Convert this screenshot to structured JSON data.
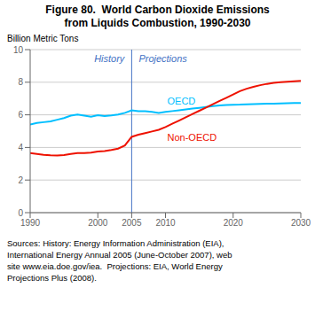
{
  "chart_data": {
    "type": "line",
    "title": "Figure 80.  World Carbon Dioxide Emissions",
    "subtitle": "from Liquids Combustion, 1990-2030",
    "y_label": "Billion Metric Tons",
    "x": [
      1990,
      1991,
      1992,
      1993,
      1994,
      1995,
      1996,
      1997,
      1998,
      1999,
      2000,
      2001,
      2002,
      2003,
      2004,
      2005,
      2006,
      2007,
      2008,
      2009,
      2010,
      2011,
      2012,
      2013,
      2014,
      2015,
      2016,
      2017,
      2018,
      2019,
      2020,
      2021,
      2022,
      2023,
      2024,
      2025,
      2026,
      2027,
      2028,
      2029,
      2030
    ],
    "series": [
      {
        "name": "OECD",
        "color": "#00BFFF",
        "values": [
          5.4,
          5.5,
          5.55,
          5.6,
          5.7,
          5.8,
          5.95,
          6.02,
          5.95,
          5.88,
          5.98,
          5.93,
          5.97,
          6.02,
          6.12,
          6.28,
          6.22,
          6.22,
          6.18,
          6.12,
          6.18,
          6.23,
          6.28,
          6.33,
          6.38,
          6.43,
          6.48,
          6.53,
          6.57,
          6.6,
          6.62,
          6.63,
          6.65,
          6.66,
          6.67,
          6.68,
          6.69,
          6.7,
          6.71,
          6.72,
          6.73
        ]
      },
      {
        "name": "Non-OECD",
        "color": "#EE1100",
        "values": [
          3.65,
          3.6,
          3.55,
          3.52,
          3.5,
          3.53,
          3.6,
          3.65,
          3.65,
          3.68,
          3.75,
          3.78,
          3.85,
          3.93,
          4.12,
          4.65,
          4.78,
          4.88,
          4.98,
          5.08,
          5.25,
          5.45,
          5.65,
          5.85,
          6.05,
          6.25,
          6.45,
          6.65,
          6.85,
          7.05,
          7.25,
          7.45,
          7.6,
          7.72,
          7.82,
          7.9,
          7.96,
          8.0,
          8.03,
          8.06,
          8.09
        ]
      }
    ],
    "xlim": [
      1990,
      2030
    ],
    "xticks": [
      1990,
      2000,
      2005,
      2010,
      2020,
      2030
    ],
    "ylim": [
      0,
      10
    ],
    "yticks": [
      0,
      2,
      4,
      6,
      8,
      10
    ],
    "grid": "y",
    "divider": {
      "x": 2005,
      "color": "#4472C4",
      "left_label": "History",
      "right_label": "Projections"
    },
    "footnote": [
      "Sources: History: Energy Information Administration (EIA),",
      "International Energy Annual 2005 (June-October 2007), web",
      "site www.eia.doe.gov/iea.  Projections: EIA, World Energy",
      "Projections Plus (2008)."
    ]
  }
}
